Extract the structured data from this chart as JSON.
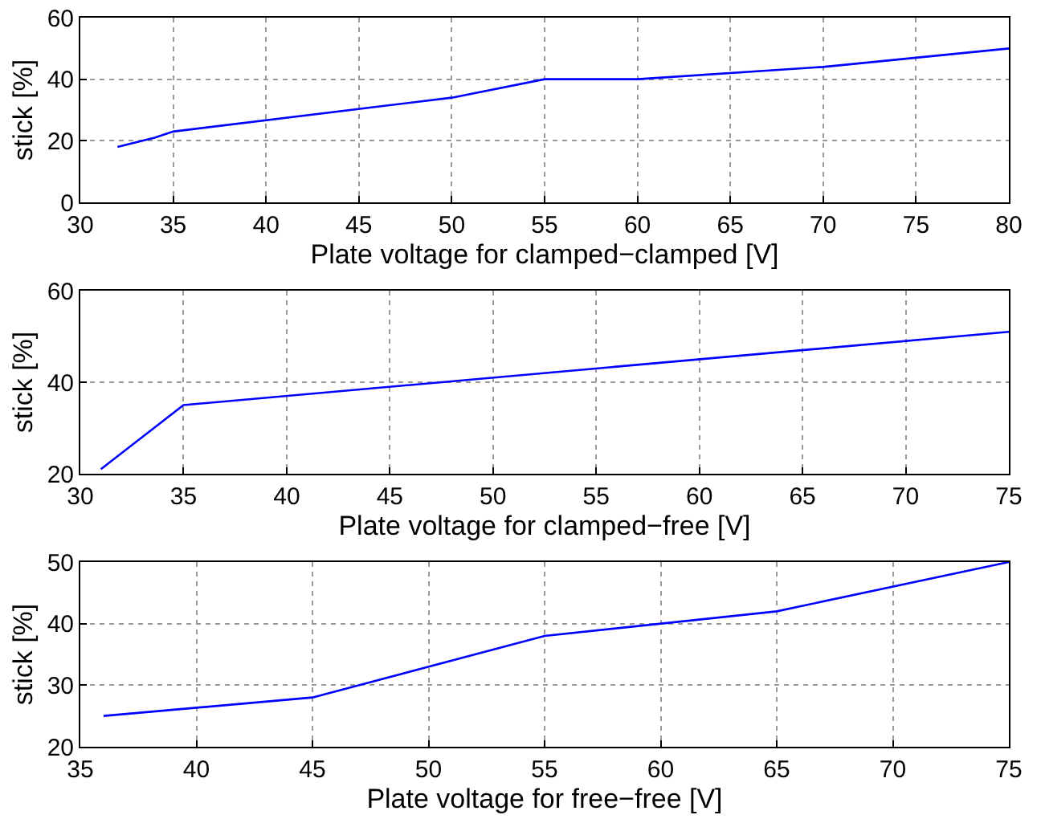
{
  "chart_data": [
    {
      "type": "line",
      "xlabel": "Plate voltage for clamped−clamped [V]",
      "ylabel": "stick [%]",
      "xlim": [
        30,
        80
      ],
      "xticks": [
        30,
        35,
        40,
        45,
        50,
        55,
        60,
        65,
        70,
        75,
        80
      ],
      "ylim": [
        0,
        60
      ],
      "yticks": [
        0,
        20,
        40,
        60
      ],
      "grid": true,
      "line_style": "solid",
      "series": [
        {
          "color": "#0000ff",
          "x": [
            32,
            34,
            35,
            50,
            55,
            60,
            70,
            80
          ],
          "values": [
            18,
            21,
            23,
            34,
            40,
            40,
            44,
            50
          ]
        }
      ]
    },
    {
      "type": "line",
      "xlabel": "Plate voltage for clamped−free [V]",
      "ylabel": "stick [%]",
      "xlim": [
        30,
        75
      ],
      "xticks": [
        30,
        35,
        40,
        45,
        50,
        55,
        60,
        65,
        70,
        75
      ],
      "ylim": [
        20,
        60
      ],
      "yticks": [
        20,
        40,
        60
      ],
      "grid": true,
      "line_style": "solid",
      "series": [
        {
          "color": "#0000ff",
          "x": [
            31,
            35,
            75
          ],
          "values": [
            21,
            35,
            51
          ]
        }
      ]
    },
    {
      "type": "line",
      "xlabel": "Plate voltage for free−free [V]",
      "ylabel": "stick [%]",
      "xlim": [
        35,
        75
      ],
      "xticks": [
        35,
        40,
        45,
        50,
        55,
        60,
        65,
        70,
        75
      ],
      "ylim": [
        20,
        50
      ],
      "yticks": [
        20,
        30,
        40,
        50
      ],
      "grid": true,
      "line_style": "solid",
      "series": [
        {
          "color": "#0000ff",
          "x": [
            36,
            45,
            55,
            65,
            75
          ],
          "values": [
            25,
            28,
            38,
            42,
            50
          ]
        }
      ]
    }
  ]
}
